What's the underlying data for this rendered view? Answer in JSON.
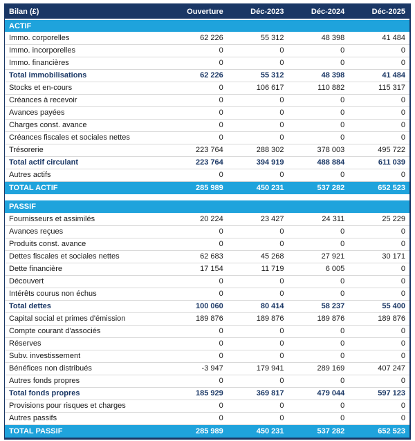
{
  "header": {
    "columns": [
      "Bilan (£)",
      "Ouverture",
      "Déc-2023",
      "Déc-2024",
      "Déc-2025"
    ]
  },
  "sections": [
    {
      "title": "ACTIF",
      "rows": [
        {
          "label": "Immo. corporelles",
          "values": [
            "62 226",
            "55 312",
            "48 398",
            "41 484"
          ],
          "style": "normal"
        },
        {
          "label": "Immo. incorporelles",
          "values": [
            "0",
            "0",
            "0",
            "0"
          ],
          "style": "normal"
        },
        {
          "label": "Immo. financières",
          "values": [
            "0",
            "0",
            "0",
            "0"
          ],
          "style": "normal"
        },
        {
          "label": "Total immobilisations",
          "values": [
            "62 226",
            "55 312",
            "48 398",
            "41 484"
          ],
          "style": "subtotal"
        },
        {
          "label": "Stocks et en-cours",
          "values": [
            "0",
            "106 617",
            "110 882",
            "115 317"
          ],
          "style": "normal"
        },
        {
          "label": "Créances à recevoir",
          "values": [
            "0",
            "0",
            "0",
            "0"
          ],
          "style": "normal"
        },
        {
          "label": "Avances payées",
          "values": [
            "0",
            "0",
            "0",
            "0"
          ],
          "style": "normal"
        },
        {
          "label": "Charges const. avance",
          "values": [
            "0",
            "0",
            "0",
            "0"
          ],
          "style": "normal"
        },
        {
          "label": "Créances fiscales et sociales nettes",
          "values": [
            "0",
            "0",
            "0",
            "0"
          ],
          "style": "normal"
        },
        {
          "label": "Trésorerie",
          "values": [
            "223 764",
            "288 302",
            "378 003",
            "495 722"
          ],
          "style": "normal"
        },
        {
          "label": "Total actif circulant",
          "values": [
            "223 764",
            "394 919",
            "488 884",
            "611 039"
          ],
          "style": "subtotal"
        },
        {
          "label": "Autres actifs",
          "values": [
            "0",
            "0",
            "0",
            "0"
          ],
          "style": "normal"
        }
      ],
      "total": {
        "label": "TOTAL ACTIF",
        "values": [
          "285 989",
          "450 231",
          "537 282",
          "652 523"
        ]
      }
    },
    {
      "title": "PASSIF",
      "rows": [
        {
          "label": "Fournisseurs et assimilés",
          "values": [
            "20 224",
            "23 427",
            "24 311",
            "25 229"
          ],
          "style": "normal"
        },
        {
          "label": "Avances reçues",
          "values": [
            "0",
            "0",
            "0",
            "0"
          ],
          "style": "normal"
        },
        {
          "label": "Produits const. avance",
          "values": [
            "0",
            "0",
            "0",
            "0"
          ],
          "style": "normal"
        },
        {
          "label": "Dettes fiscales et sociales nettes",
          "values": [
            "62 683",
            "45 268",
            "27 921",
            "30 171"
          ],
          "style": "normal"
        },
        {
          "label": "Dette financière",
          "values": [
            "17 154",
            "11 719",
            "6 005",
            "0"
          ],
          "style": "normal"
        },
        {
          "label": "Découvert",
          "values": [
            "0",
            "0",
            "0",
            "0"
          ],
          "style": "normal"
        },
        {
          "label": "Intérêts courus non échus",
          "values": [
            "0",
            "0",
            "0",
            "0"
          ],
          "style": "normal"
        },
        {
          "label": "Total dettes",
          "values": [
            "100 060",
            "80 414",
            "58 237",
            "55 400"
          ],
          "style": "subtotal"
        },
        {
          "label": "Capital social et primes d'émission",
          "values": [
            "189 876",
            "189 876",
            "189 876",
            "189 876"
          ],
          "style": "normal"
        },
        {
          "label": "Compte courant d'associés",
          "values": [
            "0",
            "0",
            "0",
            "0"
          ],
          "style": "normal"
        },
        {
          "label": "Réserves",
          "values": [
            "0",
            "0",
            "0",
            "0"
          ],
          "style": "normal"
        },
        {
          "label": "Subv. investissement",
          "values": [
            "0",
            "0",
            "0",
            "0"
          ],
          "style": "normal"
        },
        {
          "label": "Bénéfices non distribués",
          "values": [
            "-3 947",
            "179 941",
            "289 169",
            "407 247"
          ],
          "style": "normal"
        },
        {
          "label": "Autres fonds propres",
          "values": [
            "0",
            "0",
            "0",
            "0"
          ],
          "style": "normal"
        },
        {
          "label": "Total fonds propres",
          "values": [
            "185 929",
            "369 817",
            "479 044",
            "597 123"
          ],
          "style": "subtotal"
        },
        {
          "label": "Provisions pour risques et charges",
          "values": [
            "0",
            "0",
            "0",
            "0"
          ],
          "style": "normal"
        },
        {
          "label": "Autres passifs",
          "values": [
            "0",
            "0",
            "0",
            "0"
          ],
          "style": "normal"
        }
      ],
      "total": {
        "label": "TOTAL PASSIF",
        "values": [
          "285 989",
          "450 231",
          "537 282",
          "652 523"
        ]
      }
    }
  ],
  "colors": {
    "header_bg": "#1A3765",
    "accent_cyan": "#1FA3DC",
    "subtotal_text": "#1A3765",
    "row_border": "#D9D9D9"
  }
}
